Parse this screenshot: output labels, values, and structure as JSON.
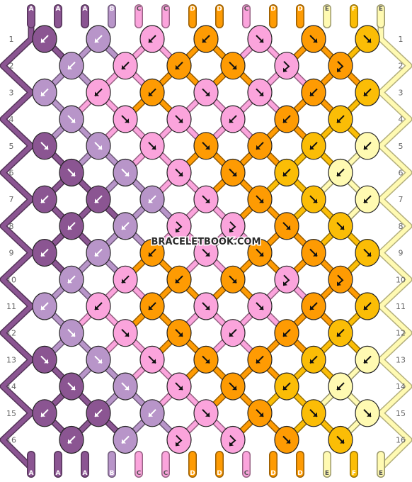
{
  "watermark": "BRACELETBOOK.COM",
  "colors": {
    "A": "#8b5592",
    "B": "#b895c9",
    "C": "#fba4dc",
    "D": "#fe9b03",
    "E": "#fffab2",
    "F": "#fbbd06"
  },
  "strands_top": [
    "A",
    "A",
    "A",
    "B",
    "C",
    "C",
    "D",
    "D",
    "C",
    "D",
    "D",
    "E",
    "F",
    "E"
  ],
  "strands_bottom": [
    "A",
    "A",
    "A",
    "B",
    "C",
    "C",
    "D",
    "D",
    "C",
    "D",
    "D",
    "E",
    "F",
    "E"
  ],
  "row_numbers": [
    "1",
    "2",
    "3",
    "4",
    "5",
    "6",
    "7",
    "8",
    "9",
    "10",
    "11",
    "12",
    "13",
    "14",
    "15",
    "16"
  ],
  "knots": [
    [
      {
        "c": "A",
        "d": "bl"
      },
      {
        "c": "B",
        "d": "bl"
      },
      {
        "c": "C",
        "d": "bl"
      },
      {
        "c": "D",
        "d": "bl"
      },
      {
        "c": "C",
        "d": "br"
      },
      {
        "c": "D",
        "d": "br"
      },
      {
        "c": "F",
        "d": "br"
      }
    ],
    [
      {
        "c": "B",
        "d": "bl"
      },
      {
        "c": "C",
        "d": "bl"
      },
      {
        "c": "D",
        "d": "bl"
      },
      {
        "c": "D",
        "d": "br"
      },
      {
        "c": "C",
        "d": "fr"
      },
      {
        "c": "D",
        "d": "fr"
      }
    ],
    [
      {
        "c": "B",
        "d": "bl"
      },
      {
        "c": "C",
        "d": "bl"
      },
      {
        "c": "D",
        "d": "bl"
      },
      {
        "c": "C",
        "d": "br"
      },
      {
        "c": "C",
        "d": "br"
      },
      {
        "c": "D",
        "d": "bl"
      },
      {
        "c": "F",
        "d": "bl"
      }
    ],
    [
      {
        "c": "B",
        "d": "br"
      },
      {
        "c": "C",
        "d": "br"
      },
      {
        "c": "C",
        "d": "br"
      },
      {
        "c": "C",
        "d": "bl"
      },
      {
        "c": "D",
        "d": "bl"
      },
      {
        "c": "F",
        "d": "bl"
      }
    ],
    [
      {
        "c": "A",
        "d": "br"
      },
      {
        "c": "B",
        "d": "br"
      },
      {
        "c": "C",
        "d": "br"
      },
      {
        "c": "D",
        "d": "br"
      },
      {
        "c": "D",
        "d": "bl"
      },
      {
        "c": "F",
        "d": "bl"
      },
      {
        "c": "E",
        "d": "bl"
      }
    ],
    [
      {
        "c": "A",
        "d": "br"
      },
      {
        "c": "B",
        "d": "br"
      },
      {
        "c": "C",
        "d": "br"
      },
      {
        "c": "D",
        "d": "br"
      },
      {
        "c": "F",
        "d": "bl"
      },
      {
        "c": "E",
        "d": "bl"
      }
    ],
    [
      {
        "c": "A",
        "d": "bl"
      },
      {
        "c": "A",
        "d": "bl"
      },
      {
        "c": "B",
        "d": "bl"
      },
      {
        "c": "C",
        "d": "br"
      },
      {
        "c": "D",
        "d": "br"
      },
      {
        "c": "F",
        "d": "br"
      },
      {
        "c": "E",
        "d": "bl"
      }
    ],
    [
      {
        "c": "A",
        "d": "bl"
      },
      {
        "c": "B",
        "d": "bl"
      },
      {
        "c": "C",
        "d": "fr"
      },
      {
        "c": "C",
        "d": "fr"
      },
      {
        "c": "D",
        "d": "br"
      },
      {
        "c": "F",
        "d": "br"
      }
    ],
    [
      {
        "c": "A",
        "d": "bl"
      },
      {
        "c": "B",
        "d": "bl"
      },
      {
        "c": "D",
        "d": "bl"
      },
      {
        "c": "C",
        "d": "br"
      },
      {
        "c": "D",
        "d": "br"
      },
      {
        "c": "D",
        "d": "br"
      },
      {
        "c": "F",
        "d": "br"
      }
    ],
    [
      {
        "c": "B",
        "d": "bl"
      },
      {
        "c": "C",
        "d": "bl"
      },
      {
        "c": "D",
        "d": "bl"
      },
      {
        "c": "D",
        "d": "br"
      },
      {
        "c": "C",
        "d": "fr"
      },
      {
        "c": "D",
        "d": "fr"
      }
    ],
    [
      {
        "c": "B",
        "d": "bl"
      },
      {
        "c": "C",
        "d": "bl"
      },
      {
        "c": "D",
        "d": "bl"
      },
      {
        "c": "C",
        "d": "br"
      },
      {
        "c": "C",
        "d": "br"
      },
      {
        "c": "D",
        "d": "bl"
      },
      {
        "c": "F",
        "d": "bl"
      }
    ],
    [
      {
        "c": "B",
        "d": "br"
      },
      {
        "c": "C",
        "d": "br"
      },
      {
        "c": "D",
        "d": "br"
      },
      {
        "c": "C",
        "d": "bl"
      },
      {
        "c": "D",
        "d": "bl"
      },
      {
        "c": "F",
        "d": "bl"
      }
    ],
    [
      {
        "c": "A",
        "d": "br"
      },
      {
        "c": "B",
        "d": "br"
      },
      {
        "c": "C",
        "d": "br"
      },
      {
        "c": "D",
        "d": "br"
      },
      {
        "c": "D",
        "d": "bl"
      },
      {
        "c": "F",
        "d": "bl"
      },
      {
        "c": "E",
        "d": "bl"
      }
    ],
    [
      {
        "c": "A",
        "d": "br"
      },
      {
        "c": "B",
        "d": "br"
      },
      {
        "c": "C",
        "d": "br"
      },
      {
        "c": "D",
        "d": "br"
      },
      {
        "c": "F",
        "d": "bl"
      },
      {
        "c": "E",
        "d": "bl"
      }
    ],
    [
      {
        "c": "A",
        "d": "bl"
      },
      {
        "c": "A",
        "d": "bl"
      },
      {
        "c": "B",
        "d": "bl"
      },
      {
        "c": "C",
        "d": "br"
      },
      {
        "c": "D",
        "d": "br"
      },
      {
        "c": "F",
        "d": "br"
      },
      {
        "c": "E",
        "d": "br"
      }
    ],
    [
      {
        "c": "A",
        "d": "bl"
      },
      {
        "c": "B",
        "d": "bl"
      },
      {
        "c": "C",
        "d": "fr"
      },
      {
        "c": "C",
        "d": "fr"
      },
      {
        "c": "D",
        "d": "br"
      },
      {
        "c": "F",
        "d": "br"
      }
    ]
  ]
}
